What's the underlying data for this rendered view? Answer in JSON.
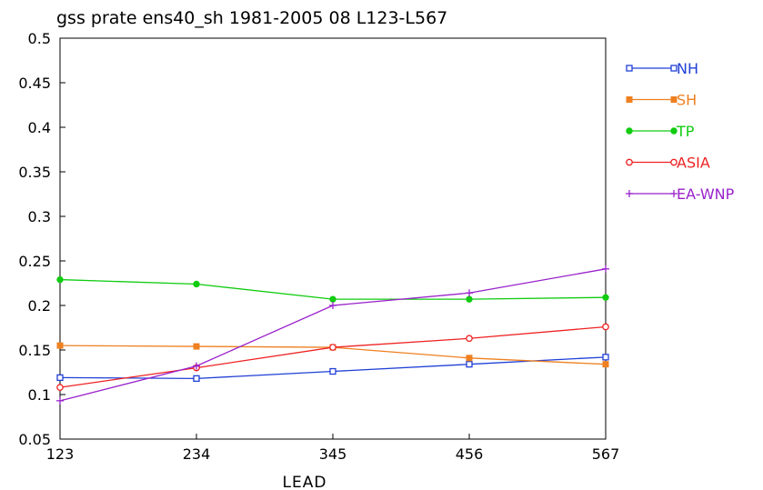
{
  "chart_data": {
    "type": "line",
    "title": "gss prate ens40_sh 1981-2005 08 L123-L567",
    "xlabel": "LEAD",
    "ylabel": "",
    "categories": [
      "123",
      "234",
      "345",
      "456",
      "567"
    ],
    "ylim": [
      0.05,
      0.5
    ],
    "yticks": [
      "0.05",
      "0.1",
      "0.15",
      "0.2",
      "0.25",
      "0.3",
      "0.35",
      "0.4",
      "0.45",
      "0.5"
    ],
    "grid": false,
    "legend_position": "right",
    "series": [
      {
        "name": "NH",
        "color": "#1f3fd6",
        "marker": "open-square",
        "values": [
          0.119,
          0.118,
          0.126,
          0.134,
          0.142
        ]
      },
      {
        "name": "SH",
        "color": "#ee8020",
        "marker": "filled-square",
        "values": [
          0.155,
          0.154,
          0.153,
          0.141,
          0.134
        ]
      },
      {
        "name": "TP",
        "color": "#11cc11",
        "marker": "filled-circle",
        "values": [
          0.229,
          0.224,
          0.207,
          0.207,
          0.209
        ]
      },
      {
        "name": "ASIA",
        "color": "#ee2222",
        "marker": "open-circle",
        "values": [
          0.108,
          0.13,
          0.153,
          0.163,
          0.176
        ]
      },
      {
        "name": "EA-WNP",
        "color": "#9922cc",
        "marker": "plus",
        "values": [
          0.093,
          0.132,
          0.2,
          0.214,
          0.241
        ]
      }
    ]
  }
}
